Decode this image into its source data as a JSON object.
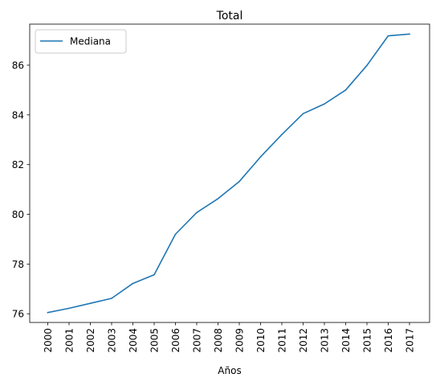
{
  "chart_data": {
    "type": "line",
    "title": "Total",
    "xlabel": "Años",
    "ylabel": "",
    "x": [
      "2000",
      "2001",
      "2002",
      "2003",
      "2004",
      "2005",
      "2006",
      "2007",
      "2008",
      "2009",
      "2010",
      "2011",
      "2012",
      "2013",
      "2014",
      "2015",
      "2016",
      "2017"
    ],
    "ylim": [
      75.65,
      87.65
    ],
    "yticks": [
      76,
      78,
      80,
      82,
      84,
      86
    ],
    "grid": false,
    "legend": {
      "placement": "top-left"
    },
    "series": [
      {
        "name": "Mediana",
        "color": "#1f77b4",
        "values": [
          76.05,
          76.22,
          76.42,
          76.62,
          77.22,
          77.57,
          79.2,
          80.07,
          80.63,
          81.32,
          82.31,
          83.21,
          84.05,
          84.44,
          85.0,
          85.99,
          87.18,
          87.25
        ]
      }
    ]
  }
}
